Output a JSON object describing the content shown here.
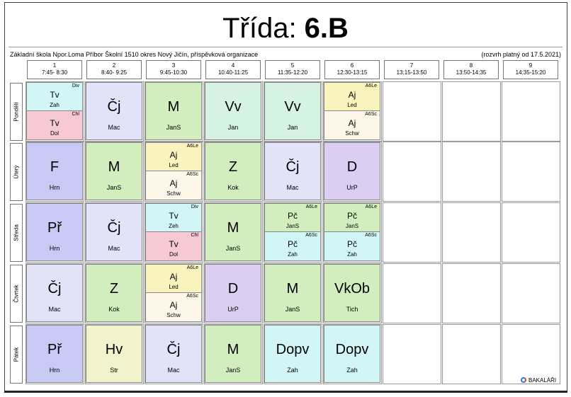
{
  "title": {
    "prefix": "Třída: ",
    "cls": "6.B"
  },
  "school": "Základní škola Npor.Loma Příbor Školní 1510 okres Nový Jičín, příspěvková organizace",
  "valid": "(rozvrh platný od 17.5.2021)",
  "logo": "BAKALÁŘI",
  "periods": [
    {
      "num": "1",
      "time": "7:45- 8:30"
    },
    {
      "num": "2",
      "time": "8:40- 9:25"
    },
    {
      "num": "3",
      "time": "9:45-10:30"
    },
    {
      "num": "4",
      "time": "10:40-11:25"
    },
    {
      "num": "5",
      "time": "11:35-12:20"
    },
    {
      "num": "6",
      "time": "12:30-13:15"
    },
    {
      "num": "7",
      "time": "13:15-13:50"
    },
    {
      "num": "8",
      "time": "13:50-14:35"
    },
    {
      "num": "9",
      "time": "14:35-15:20"
    }
  ],
  "days": [
    "Pondělí",
    "Úterý",
    "Středa",
    "Čtvrtek",
    "Pátek"
  ],
  "lessons": [
    [
      {
        "split": true,
        "top": {
          "grp": "Div",
          "subj": "Tv",
          "teach": "Zah",
          "color": "c-cyan"
        },
        "bot": {
          "grp": "Chl",
          "subj": "Tv",
          "teach": "Dol",
          "color": "c-pink"
        }
      },
      {
        "subj": "Čj",
        "teach": "Mac",
        "color": "c-lav"
      },
      {
        "subj": "M",
        "teach": "JanS",
        "color": "c-green"
      },
      {
        "subj": "Vv",
        "teach": "Jan",
        "color": "c-mint"
      },
      {
        "subj": "Vv",
        "teach": "Jan",
        "color": "c-mint"
      },
      {
        "split": true,
        "top": {
          "grp": "A6Le",
          "subj": "Aj",
          "teach": "Led",
          "color": "c-yellow"
        },
        "bot": {
          "grp": "A6Sc",
          "subj": "Aj",
          "teach": "Schw",
          "color": "c-cream"
        }
      }
    ],
    [
      {
        "subj": "F",
        "teach": "Hrn",
        "color": "c-purple"
      },
      {
        "subj": "M",
        "teach": "JanS",
        "color": "c-green"
      },
      {
        "split": true,
        "top": {
          "grp": "A6Le",
          "subj": "Aj",
          "teach": "Led",
          "color": "c-yellow"
        },
        "bot": {
          "grp": "A6Sc",
          "subj": "Aj",
          "teach": "Schw",
          "color": "c-cream"
        }
      },
      {
        "subj": "Z",
        "teach": "Kok",
        "color": "c-green"
      },
      {
        "subj": "Čj",
        "teach": "Mac",
        "color": "c-lav"
      },
      {
        "subj": "D",
        "teach": "UrP",
        "color": "c-violet"
      }
    ],
    [
      {
        "subj": "Př",
        "teach": "Hrn",
        "color": "c-purple"
      },
      {
        "subj": "Čj",
        "teach": "Mac",
        "color": "c-lav"
      },
      {
        "split": true,
        "top": {
          "grp": "Div",
          "subj": "Tv",
          "teach": "Zeh",
          "color": "c-cyan"
        },
        "bot": {
          "grp": "Chl",
          "subj": "Tv",
          "teach": "Dol",
          "color": "c-pink"
        }
      },
      {
        "subj": "M",
        "teach": "JanS",
        "color": "c-green"
      },
      {
        "split": true,
        "top": {
          "grp": "A6Le",
          "subj": "Pč",
          "teach": "JanS",
          "color": "c-green"
        },
        "bot": {
          "grp": "A6Sc",
          "subj": "Pč",
          "teach": "Zah",
          "color": "c-cyan"
        }
      },
      {
        "split": true,
        "top": {
          "grp": "A6Le",
          "subj": "Pč",
          "teach": "JanS",
          "color": "c-green"
        },
        "bot": {
          "grp": "A6Sc",
          "subj": "Pč",
          "teach": "Zah",
          "color": "c-cyan"
        }
      }
    ],
    [
      {
        "subj": "Čj",
        "teach": "Mac",
        "color": "c-lav"
      },
      {
        "subj": "Z",
        "teach": "Kok",
        "color": "c-green"
      },
      {
        "split": true,
        "top": {
          "grp": "A6Le",
          "subj": "Aj",
          "teach": "Led",
          "color": "c-yellow"
        },
        "bot": {
          "grp": "A6Sc",
          "subj": "Aj",
          "teach": "Schw",
          "color": "c-cream"
        }
      },
      {
        "subj": "D",
        "teach": "UrP",
        "color": "c-violet"
      },
      {
        "subj": "M",
        "teach": "JanS",
        "color": "c-green"
      },
      {
        "subj": "VkOb",
        "teach": "Tich",
        "color": "c-green"
      }
    ],
    [
      {
        "subj": "Př",
        "teach": "Hrn",
        "color": "c-purple"
      },
      {
        "subj": "Hv",
        "teach": "Str",
        "color": "c-olive"
      },
      {
        "subj": "Čj",
        "teach": "Mac",
        "color": "c-lav"
      },
      {
        "subj": "M",
        "teach": "JanS",
        "color": "c-green"
      },
      {
        "subj": "Dopv",
        "teach": "Zah",
        "color": "c-cyan"
      },
      {
        "subj": "Dopv",
        "teach": "Zah",
        "color": "c-cyan"
      }
    ]
  ]
}
